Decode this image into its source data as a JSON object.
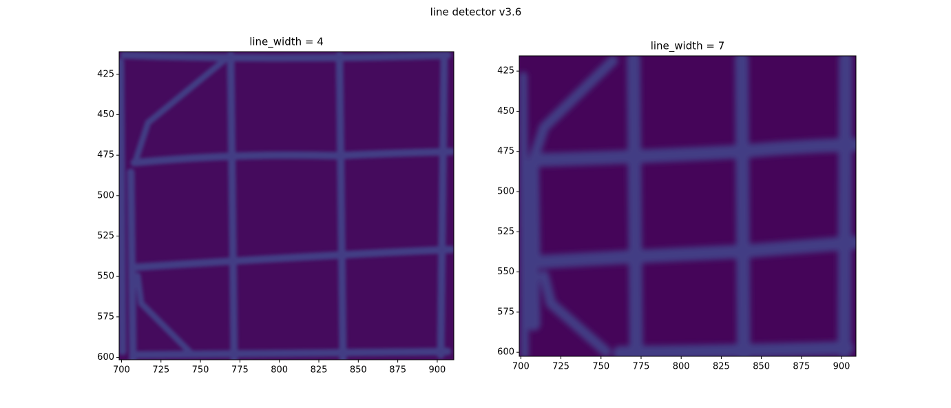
{
  "title": "line detector v3.6",
  "chart_data": [
    {
      "type": "image",
      "title": "line_width = 4",
      "xlim": [
        698.5,
        910.5
      ],
      "ylim": [
        601.5,
        411
      ],
      "xticks": [
        700,
        725,
        750,
        775,
        800,
        825,
        850,
        875,
        900
      ],
      "yticks": [
        425,
        450,
        475,
        500,
        525,
        550,
        575,
        600
      ]
    },
    {
      "type": "image",
      "title": "line_width = 7",
      "xlim": [
        699,
        909
      ],
      "ylim": [
        602.5,
        415.5
      ],
      "xticks": [
        700,
        725,
        750,
        775,
        800,
        825,
        850,
        875,
        900
      ],
      "yticks": [
        425,
        450,
        475,
        500,
        525,
        550,
        575,
        600
      ]
    }
  ]
}
